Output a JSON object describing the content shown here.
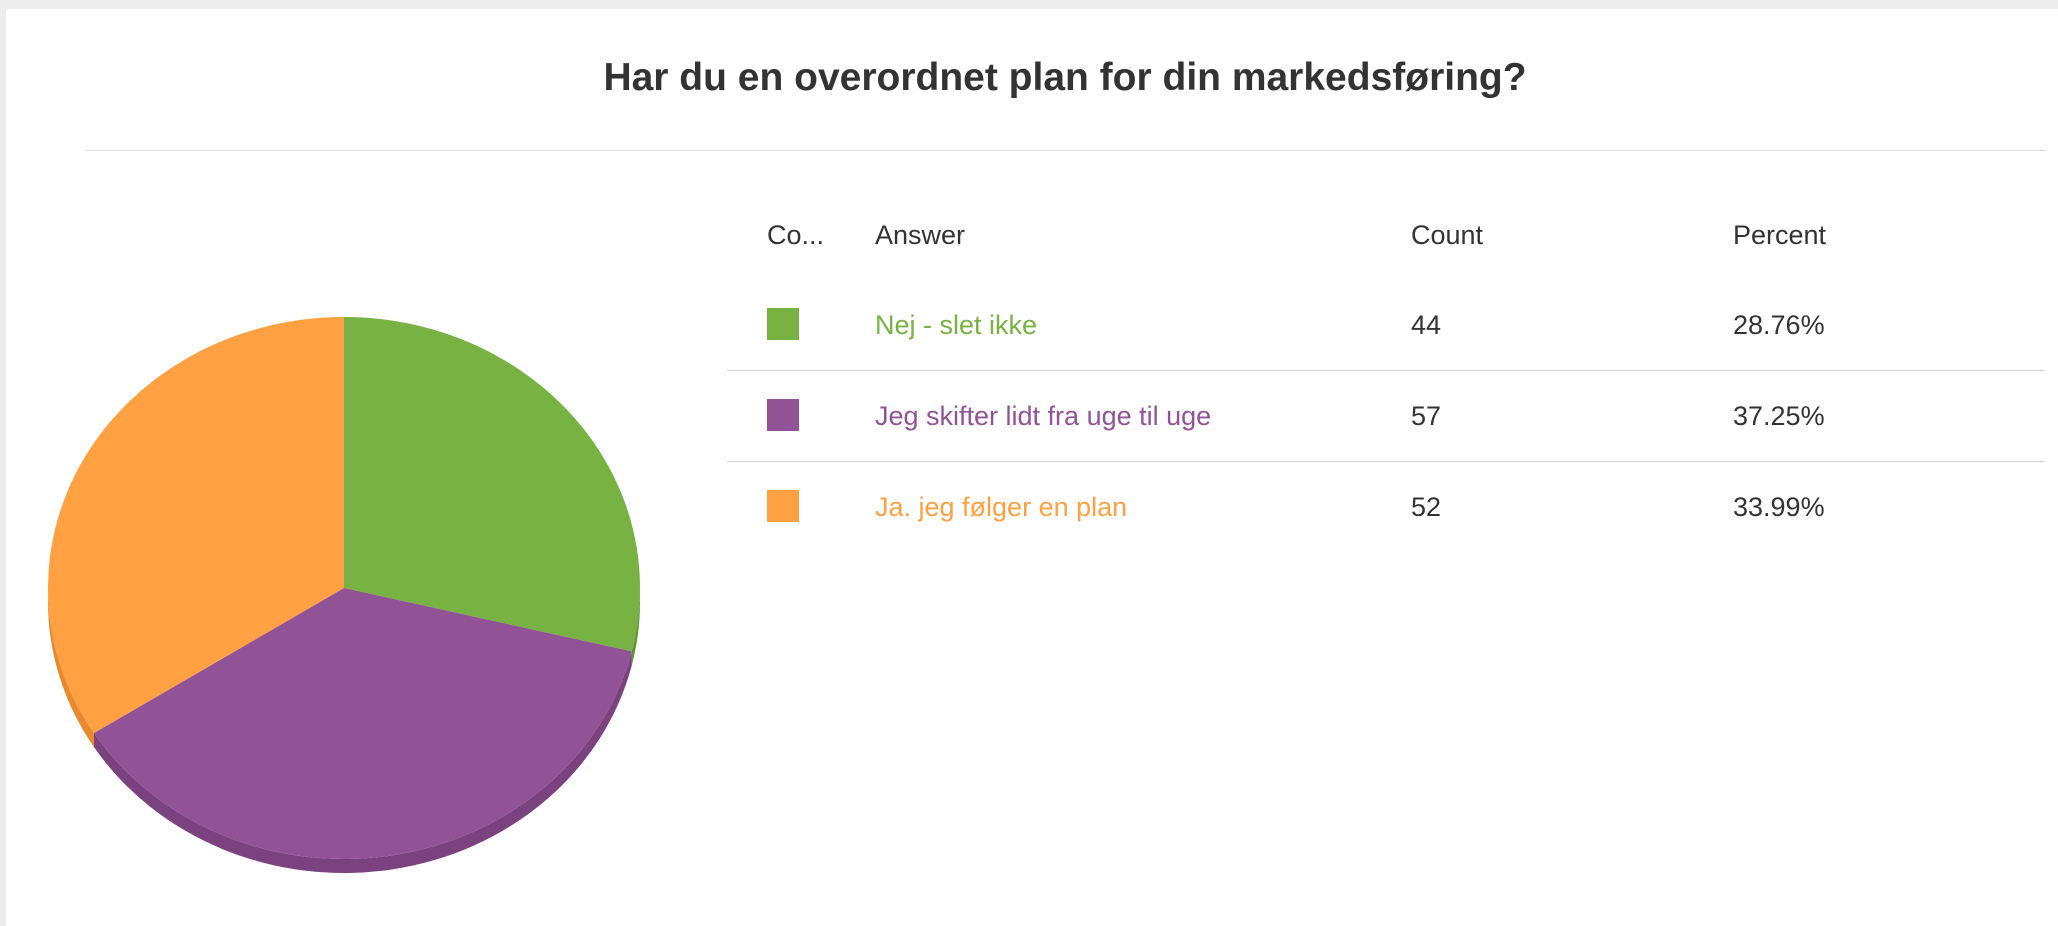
{
  "title": "Har du en overordnet plan for din markedsføring?",
  "table": {
    "headers": {
      "color": "Co...",
      "answer": "Answer",
      "count": "Count",
      "percent": "Percent"
    },
    "rows": [
      {
        "answer": "Nej - slet ikke",
        "count": "44",
        "percent": "28.76%",
        "color": "#77B243"
      },
      {
        "answer": "Jeg skifter lidt fra uge til uge",
        "count": "57",
        "percent": "37.25%",
        "color": "#925396"
      },
      {
        "answer": "Ja. jeg følger en plan",
        "count": "52",
        "percent": "33.99%",
        "color": "#FFA043"
      }
    ]
  },
  "chart_data": {
    "type": "pie",
    "categories": [
      "Nej - slet ikke",
      "Jeg skifter lidt fra uge til uge",
      "Ja. jeg følger en plan"
    ],
    "values": [
      44,
      57,
      52
    ],
    "percents": [
      28.76,
      37.25,
      33.99
    ],
    "colors": [
      "#77B243",
      "#925396",
      "#FFA043"
    ],
    "shadow_colors": [
      "#5E9433",
      "#7A4380",
      "#E8892E"
    ],
    "style": "3d",
    "legend": "table-right"
  }
}
